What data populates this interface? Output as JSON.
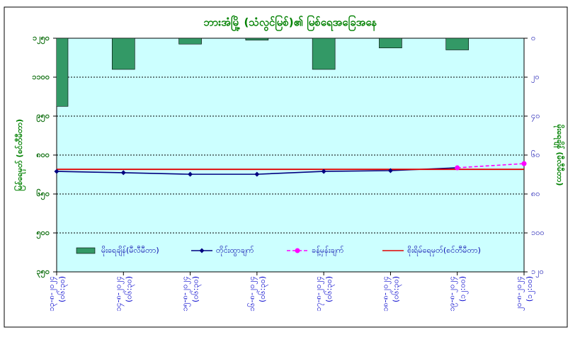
{
  "chart_data": {
    "type": "combo",
    "title": "ဘားအံမြို့ (သံလွင်မြစ်)၏ မြစ်ရေအခြေအနေ",
    "y_label": "မြစ်ရေမှတ် (စင်တီမီတာ)",
    "y2_label": "မိုးရေချိန် (မီလီမီတာ)",
    "categories": [
      [
        "၁၃-၈-၂၀၂၄",
        "(၀၆:၃၀)"
      ],
      [
        "၁၄-၈-၂၀၂၄",
        "(၀၆:၃၀)"
      ],
      [
        "၁၅-၈-၂၀၂၄",
        "(၀၆:၃၀)"
      ],
      [
        "၁၆-၈-၂၀၂၄",
        "(၀၆:၃၀)"
      ],
      [
        "၁၇-၈-၂၀၂၄",
        "(၀၆:၃၀)"
      ],
      [
        "၁၈-၈-၂၀၂၄",
        "(၀၆:၃၀)"
      ],
      [
        "၁၉-၈-၂၀၂၄",
        "(၁၂:၀၀)"
      ],
      [
        "၂၀-၈-၂၀၂၄",
        "(၁၂:၀၀)"
      ]
    ],
    "ylim": [
      350,
      1250
    ],
    "yticks": [
      {
        "value": 350,
        "label": "၃၅၀"
      },
      {
        "value": 500,
        "label": "၅၀၀"
      },
      {
        "value": 650,
        "label": "၆၅၀"
      },
      {
        "value": 800,
        "label": "၈၀၀"
      },
      {
        "value": 950,
        "label": "၉၅၀"
      },
      {
        "value": 1100,
        "label": "၁၁၀၀"
      },
      {
        "value": 1250,
        "label": "၁၂၅၀"
      }
    ],
    "y2lim": [
      0,
      120
    ],
    "y2_reversed": true,
    "y2ticks": [
      {
        "value": 0,
        "label": "၀"
      },
      {
        "value": 20,
        "label": "၂၀"
      },
      {
        "value": 40,
        "label": "၄၀"
      },
      {
        "value": 60,
        "label": "၆၀"
      },
      {
        "value": 80,
        "label": "၈၀"
      },
      {
        "value": 100,
        "label": "၁၀၀"
      },
      {
        "value": 120,
        "label": "၁၂၀"
      }
    ],
    "grid": true,
    "legend": "bottom",
    "series": [
      {
        "name": "မိုးရေချိန်(မီလီမီတာ)",
        "type": "bar",
        "axis": "y2",
        "color": "#339966",
        "values": [
          35,
          16,
          3,
          1,
          16,
          5,
          6,
          null
        ]
      },
      {
        "name": "တိုင်းထွာချက်",
        "type": "line",
        "marker": "diamond",
        "color": "#000080",
        "values": [
          737,
          732,
          726,
          726,
          737,
          740,
          751,
          null
        ]
      },
      {
        "name": "ခန့်မှန်းချက်",
        "type": "line",
        "marker": "circle",
        "dashed": true,
        "color": "#ff00ff",
        "values": [
          null,
          null,
          null,
          null,
          null,
          null,
          751,
          767
        ]
      },
      {
        "name": "စိုးရိမ်ရေမှတ်(စင်တီမီတာ)",
        "type": "line",
        "color": "#e00000",
        "values": [
          745,
          745,
          745,
          745,
          745,
          745,
          745,
          745
        ]
      }
    ]
  }
}
